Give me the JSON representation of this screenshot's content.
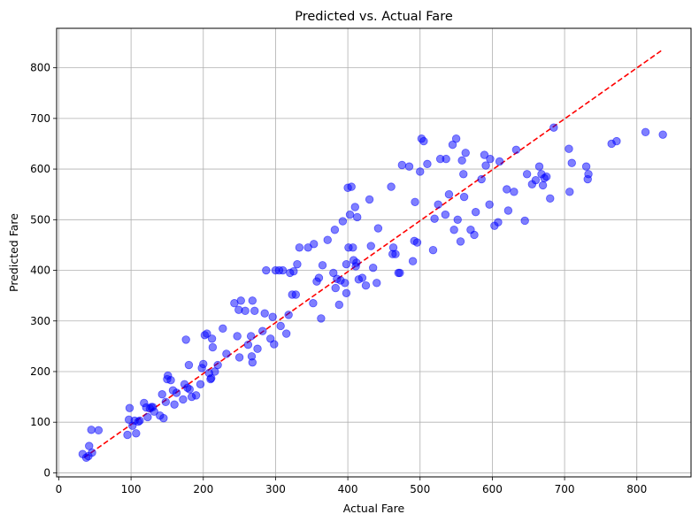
{
  "chart_data": {
    "type": "scatter",
    "title": "Predicted vs. Actual Fare",
    "xlabel": "Actual Fare",
    "ylabel": "Predicted Fare",
    "xlim": [
      -3,
      875
    ],
    "ylim": [
      -8,
      878
    ],
    "xticks": [
      0,
      100,
      200,
      300,
      400,
      500,
      600,
      700,
      800
    ],
    "yticks": [
      0,
      100,
      200,
      300,
      400,
      500,
      600,
      700,
      800
    ],
    "grid": true,
    "colors": {
      "points": "#0000ff",
      "reference_line": "#ff0000",
      "grid": "#b0b0b0"
    },
    "reference_line": {
      "style": "dashed",
      "x": [
        35,
        835
      ],
      "y": [
        30,
        835
      ]
    },
    "points": [
      [
        33,
        37
      ],
      [
        38,
        30
      ],
      [
        41,
        33
      ],
      [
        42,
        53
      ],
      [
        45,
        85
      ],
      [
        46,
        40
      ],
      [
        55,
        84
      ],
      [
        95,
        75
      ],
      [
        97,
        105
      ],
      [
        98,
        128
      ],
      [
        102,
        93
      ],
      [
        105,
        103
      ],
      [
        107,
        78
      ],
      [
        110,
        101
      ],
      [
        112,
        103
      ],
      [
        118,
        138
      ],
      [
        121,
        129
      ],
      [
        123,
        110
      ],
      [
        126,
        127
      ],
      [
        128,
        130
      ],
      [
        130,
        130
      ],
      [
        132,
        121
      ],
      [
        140,
        113
      ],
      [
        143,
        155
      ],
      [
        145,
        108
      ],
      [
        148,
        140
      ],
      [
        150,
        185
      ],
      [
        151,
        192
      ],
      [
        155,
        183
      ],
      [
        158,
        163
      ],
      [
        160,
        135
      ],
      [
        163,
        158
      ],
      [
        172,
        145
      ],
      [
        174,
        175
      ],
      [
        176,
        263
      ],
      [
        178,
        168
      ],
      [
        180,
        213
      ],
      [
        181,
        165
      ],
      [
        184,
        150
      ],
      [
        190,
        153
      ],
      [
        196,
        175
      ],
      [
        198,
        207
      ],
      [
        200,
        215
      ],
      [
        202,
        272
      ],
      [
        205,
        275
      ],
      [
        208,
        197
      ],
      [
        210,
        185
      ],
      [
        211,
        187
      ],
      [
        212,
        265
      ],
      [
        213,
        248
      ],
      [
        216,
        200
      ],
      [
        220,
        213
      ],
      [
        227,
        285
      ],
      [
        232,
        235
      ],
      [
        243,
        335
      ],
      [
        247,
        270
      ],
      [
        249,
        322
      ],
      [
        250,
        228
      ],
      [
        252,
        340
      ],
      [
        258,
        320
      ],
      [
        262,
        253
      ],
      [
        266,
        270
      ],
      [
        267,
        230
      ],
      [
        268,
        218
      ],
      [
        268,
        340
      ],
      [
        271,
        320
      ],
      [
        275,
        245
      ],
      [
        282,
        280
      ],
      [
        285,
        315
      ],
      [
        287,
        400
      ],
      [
        293,
        265
      ],
      [
        296,
        308
      ],
      [
        298,
        254
      ],
      [
        300,
        400
      ],
      [
        305,
        400
      ],
      [
        307,
        290
      ],
      [
        310,
        400
      ],
      [
        315,
        275
      ],
      [
        318,
        312
      ],
      [
        320,
        395
      ],
      [
        323,
        352
      ],
      [
        325,
        398
      ],
      [
        328,
        352
      ],
      [
        330,
        412
      ],
      [
        333,
        445
      ],
      [
        345,
        445
      ],
      [
        352,
        335
      ],
      [
        353,
        452
      ],
      [
        357,
        378
      ],
      [
        360,
        385
      ],
      [
        363,
        305
      ],
      [
        365,
        410
      ],
      [
        372,
        460
      ],
      [
        380,
        395
      ],
      [
        382,
        480
      ],
      [
        383,
        365
      ],
      [
        385,
        383
      ],
      [
        388,
        332
      ],
      [
        390,
        380
      ],
      [
        393,
        497
      ],
      [
        396,
        375
      ],
      [
        398,
        355
      ],
      [
        398,
        412
      ],
      [
        400,
        563
      ],
      [
        401,
        445
      ],
      [
        403,
        510
      ],
      [
        405,
        565
      ],
      [
        407,
        445
      ],
      [
        408,
        420
      ],
      [
        410,
        525
      ],
      [
        411,
        408
      ],
      [
        412,
        415
      ],
      [
        413,
        505
      ],
      [
        415,
        382
      ],
      [
        420,
        385
      ],
      [
        425,
        370
      ],
      [
        430,
        540
      ],
      [
        432,
        448
      ],
      [
        435,
        405
      ],
      [
        440,
        375
      ],
      [
        442,
        483
      ],
      [
        460,
        565
      ],
      [
        462,
        432
      ],
      [
        463,
        445
      ],
      [
        466,
        432
      ],
      [
        470,
        395
      ],
      [
        472,
        395
      ],
      [
        475,
        608
      ],
      [
        485,
        605
      ],
      [
        490,
        418
      ],
      [
        492,
        458
      ],
      [
        493,
        535
      ],
      [
        496,
        455
      ],
      [
        500,
        595
      ],
      [
        502,
        660
      ],
      [
        505,
        655
      ],
      [
        510,
        610
      ],
      [
        518,
        440
      ],
      [
        520,
        502
      ],
      [
        525,
        530
      ],
      [
        528,
        620
      ],
      [
        535,
        510
      ],
      [
        536,
        620
      ],
      [
        540,
        550
      ],
      [
        545,
        648
      ],
      [
        547,
        480
      ],
      [
        550,
        660
      ],
      [
        552,
        500
      ],
      [
        556,
        457
      ],
      [
        558,
        617
      ],
      [
        560,
        590
      ],
      [
        561,
        545
      ],
      [
        563,
        632
      ],
      [
        570,
        480
      ],
      [
        575,
        470
      ],
      [
        577,
        515
      ],
      [
        585,
        580
      ],
      [
        589,
        628
      ],
      [
        591,
        607
      ],
      [
        596,
        530
      ],
      [
        597,
        620
      ],
      [
        603,
        488
      ],
      [
        608,
        495
      ],
      [
        610,
        615
      ],
      [
        620,
        560
      ],
      [
        622,
        518
      ],
      [
        630,
        555
      ],
      [
        633,
        638
      ],
      [
        645,
        498
      ],
      [
        648,
        590
      ],
      [
        655,
        570
      ],
      [
        660,
        578
      ],
      [
        665,
        605
      ],
      [
        668,
        590
      ],
      [
        670,
        568
      ],
      [
        672,
        582
      ],
      [
        675,
        585
      ],
      [
        680,
        542
      ],
      [
        685,
        682
      ],
      [
        706,
        640
      ],
      [
        707,
        555
      ],
      [
        710,
        612
      ],
      [
        730,
        605
      ],
      [
        732,
        580
      ],
      [
        733,
        590
      ],
      [
        765,
        650
      ],
      [
        772,
        655
      ],
      [
        812,
        673
      ],
      [
        836,
        668
      ]
    ]
  }
}
